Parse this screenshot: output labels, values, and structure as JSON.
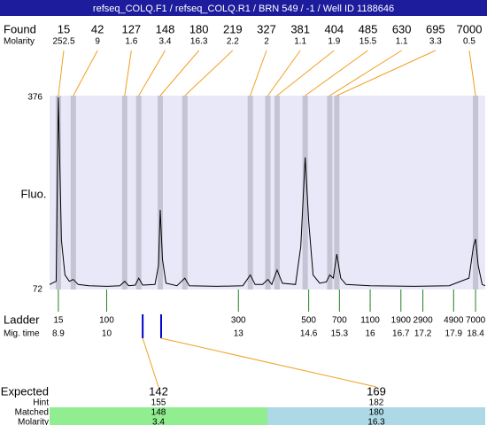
{
  "header": {
    "title": "refseq_COLQ.F1 / refseq_COLQ.R1 / BRN 549 / -1 / Well ID 1188646"
  },
  "chart_data": {
    "type": "electropherogram",
    "y_label": "Fluo.",
    "ylim": [
      72,
      376
    ],
    "yticks": [
      376,
      72
    ],
    "xlim": [
      8.7,
      18.62
    ],
    "found_label": "Found",
    "molarity_label": "Molarity",
    "peaks": {
      "size": [
        15,
        42,
        127,
        148,
        180,
        219,
        327,
        381,
        404,
        485,
        630,
        695,
        7000
      ],
      "molarity": [
        252.5,
        9,
        1.6,
        3.4,
        16.3,
        2.2,
        2,
        1.1,
        1.9,
        15.5,
        1.1,
        3.3,
        0.5
      ],
      "mig_time": [
        8.9,
        9.24,
        10.41,
        10.73,
        11.22,
        11.78,
        13.27,
        13.67,
        13.88,
        14.52,
        15.08,
        15.24,
        18.4
      ]
    },
    "ladder_label": "Ladder",
    "mig_time_label": "Mig. time",
    "ladder": {
      "size": [
        15,
        100,
        300,
        500,
        700,
        1100,
        1900,
        2900,
        4900,
        7000
      ],
      "mig_time": [
        8.9,
        10,
        13,
        14.6,
        15.3,
        16,
        16.7,
        17.2,
        17.9,
        18.4
      ]
    },
    "trace": {
      "color": "#000000",
      "x": [
        8.7,
        8.85,
        8.9,
        8.97,
        9.05,
        9.15,
        9.24,
        9.35,
        9.6,
        10.0,
        10.3,
        10.41,
        10.5,
        10.65,
        10.73,
        10.82,
        11.1,
        11.18,
        11.22,
        11.27,
        11.35,
        11.6,
        11.78,
        11.88,
        12.5,
        13.1,
        13.27,
        13.38,
        13.55,
        13.67,
        13.76,
        13.88,
        14.0,
        14.3,
        14.42,
        14.52,
        14.6,
        14.7,
        14.85,
        15.0,
        15.08,
        15.16,
        15.24,
        15.33,
        15.45,
        16,
        17,
        17.8,
        18.25,
        18.35,
        18.4,
        18.46,
        18.55,
        18.62
      ],
      "y": [
        80,
        85,
        376,
        150,
        95,
        85,
        88,
        80,
        78,
        77,
        78,
        85,
        78,
        79,
        90,
        79,
        80,
        110,
        198,
        120,
        82,
        78,
        90,
        78,
        77,
        78,
        95,
        80,
        80,
        88,
        80,
        103,
        82,
        80,
        140,
        281,
        180,
        95,
        82,
        84,
        95,
        90,
        128,
        90,
        80,
        78,
        77,
        78,
        90,
        140,
        152,
        110,
        80,
        78
      ]
    },
    "expected_label": "Expected",
    "hint_label": "Hint",
    "matched_label": "Matched",
    "matched_molarity_label": "Molarity",
    "expected": [
      {
        "expected": 142,
        "hint": 155,
        "matched": 148,
        "molarity": 3.4,
        "mig_time": 10.82,
        "color": "#90ee90"
      },
      {
        "expected": 169,
        "hint": 182,
        "matched": 180,
        "molarity": 16.3,
        "mig_time": 11.24,
        "color": "#add8e6"
      }
    ]
  }
}
